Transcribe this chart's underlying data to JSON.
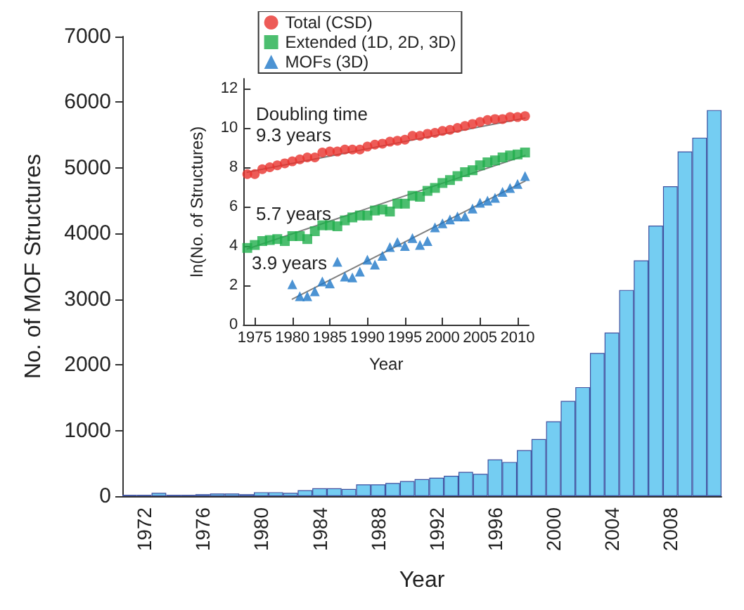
{
  "chart_data": [
    {
      "type": "bar",
      "xlabel": "Year",
      "ylabel": "No. of MOF Structures",
      "categories": [
        null,
        "1972",
        null,
        null,
        null,
        "1976",
        null,
        null,
        null,
        "1980",
        null,
        null,
        null,
        "1984",
        null,
        null,
        null,
        "1988",
        null,
        null,
        null,
        "1992",
        null,
        null,
        null,
        "1996",
        null,
        null,
        null,
        "2000",
        null,
        null,
        null,
        "2004",
        null,
        null,
        null,
        "2008",
        null,
        null,
        null
      ],
      "values": [
        20,
        20,
        50,
        20,
        20,
        30,
        40,
        40,
        30,
        60,
        60,
        50,
        90,
        120,
        120,
        110,
        180,
        180,
        200,
        230,
        260,
        280,
        310,
        370,
        340,
        560,
        520,
        700,
        870,
        1140,
        1450,
        1660,
        2180,
        2490,
        3140,
        3590,
        4120,
        4720,
        5250,
        5460,
        5880
      ],
      "color": "#74cdf2",
      "ylim": [
        0,
        7000
      ],
      "yticks": [
        0,
        1000,
        2000,
        3000,
        4000,
        5000,
        6000,
        7000
      ]
    },
    {
      "type": "scatter",
      "xlabel": "Year",
      "ylabel": "ln(No. of Structures)",
      "legend": "top",
      "xlim": [
        1973.5,
        2011.5
      ],
      "xticks": [
        1975,
        1980,
        1985,
        1990,
        1995,
        2000,
        2005,
        2010
      ],
      "ylim": [
        0,
        12.5
      ],
      "yticks": [
        0,
        2,
        4,
        6,
        8,
        10,
        12
      ],
      "annotations": [
        "Doubling time",
        "9.3 years",
        "5.7 years",
        "3.9 years"
      ],
      "series": [
        {
          "name": "Total (CSD)",
          "color": "#e8322d",
          "marker": "circle",
          "x": [
            1974,
            1975,
            1976,
            1977,
            1978,
            1979,
            1980,
            1981,
            1982,
            1983,
            1984,
            1985,
            1986,
            1987,
            1988,
            1989,
            1990,
            1991,
            1992,
            1993,
            1994,
            1995,
            1996,
            1997,
            1998,
            1999,
            2000,
            2001,
            2002,
            2003,
            2004,
            2005,
            2006,
            2007,
            2008,
            2009,
            2010,
            2011
          ],
          "values": [
            7.65,
            7.65,
            7.9,
            8.0,
            8.1,
            8.2,
            8.3,
            8.4,
            8.5,
            8.5,
            8.75,
            8.8,
            8.8,
            8.9,
            8.9,
            8.9,
            9.05,
            9.15,
            9.2,
            9.3,
            9.35,
            9.4,
            9.6,
            9.6,
            9.7,
            9.75,
            9.85,
            9.9,
            10.0,
            10.1,
            10.2,
            10.3,
            10.4,
            10.45,
            10.45,
            10.55,
            10.55,
            10.6
          ]
        },
        {
          "name": "Extended (1D, 2D, 3D)",
          "color": "#1fae4b",
          "marker": "square",
          "x": [
            1974,
            1975,
            1976,
            1977,
            1978,
            1979,
            1980,
            1981,
            1982,
            1983,
            1984,
            1985,
            1986,
            1987,
            1988,
            1989,
            1990,
            1991,
            1992,
            1993,
            1994,
            1995,
            1996,
            1997,
            1998,
            1999,
            2000,
            2001,
            2002,
            2003,
            2004,
            2005,
            2006,
            2007,
            2008,
            2009,
            2010,
            2011
          ],
          "values": [
            3.9,
            4.05,
            4.25,
            4.3,
            4.35,
            4.25,
            4.5,
            4.5,
            4.35,
            4.75,
            5.05,
            5.05,
            5.0,
            5.3,
            5.45,
            5.55,
            5.55,
            5.8,
            5.85,
            5.75,
            6.15,
            6.15,
            6.55,
            6.5,
            6.8,
            6.95,
            7.2,
            7.35,
            7.55,
            7.75,
            7.85,
            8.1,
            8.25,
            8.35,
            8.5,
            8.6,
            8.65,
            8.75
          ]
        },
        {
          "name": "MOFs (3D)",
          "color": "#1f78c8",
          "marker": "triangle",
          "x": [
            1980,
            1981,
            1982,
            1983,
            1984,
            1985,
            1986,
            1987,
            1988,
            1989,
            1990,
            1991,
            1992,
            1993,
            1994,
            1995,
            1996,
            1997,
            1998,
            1999,
            2000,
            2001,
            2002,
            2003,
            2004,
            2005,
            2006,
            2007,
            2008,
            2009,
            2010,
            2011
          ],
          "values": [
            2.05,
            1.45,
            1.45,
            1.7,
            2.2,
            2.1,
            3.2,
            2.45,
            2.4,
            2.7,
            3.3,
            3.05,
            3.5,
            3.95,
            4.2,
            4.0,
            4.4,
            4.05,
            4.25,
            4.95,
            5.15,
            5.35,
            5.5,
            5.5,
            5.9,
            6.2,
            6.3,
            6.45,
            6.75,
            6.95,
            7.15,
            7.55
          ]
        },
        {
          "type": "line",
          "color": "#808080",
          "marker": "none",
          "x": [
            1974,
            2011
          ],
          "values": [
            7.75,
            10.5
          ]
        },
        {
          "type": "line",
          "color": "#808080",
          "marker": "none",
          "x": [
            1974,
            2011
          ],
          "values": [
            3.85,
            8.6
          ]
        },
        {
          "type": "line",
          "color": "#808080",
          "marker": "none",
          "x": [
            1980,
            2011
          ],
          "values": [
            1.3,
            7.3
          ]
        }
      ]
    }
  ]
}
